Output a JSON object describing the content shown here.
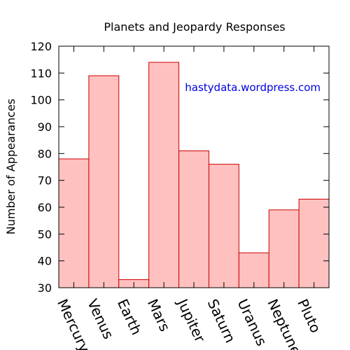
{
  "chart_data": {
    "type": "bar",
    "title": "Planets and Jeopardy Responses",
    "xlabel": "",
    "ylabel": "Number of Appearances",
    "categories": [
      "Mercury",
      "Venus",
      "Earth",
      "Mars",
      "Jupiter",
      "Saturn",
      "Uranus",
      "Neptune",
      "Pluto"
    ],
    "values": [
      78,
      109,
      33,
      114,
      81,
      76,
      43,
      59,
      63
    ],
    "ylim": [
      30,
      120
    ],
    "yticks": [
      30,
      40,
      50,
      60,
      70,
      80,
      90,
      100,
      110,
      120
    ],
    "grid": false,
    "bar_fill": "#ffc0c0",
    "bar_stroke": "#cc0000",
    "annotation": {
      "text": "hastydata.wordpress.com",
      "color": "#0000e0"
    }
  }
}
